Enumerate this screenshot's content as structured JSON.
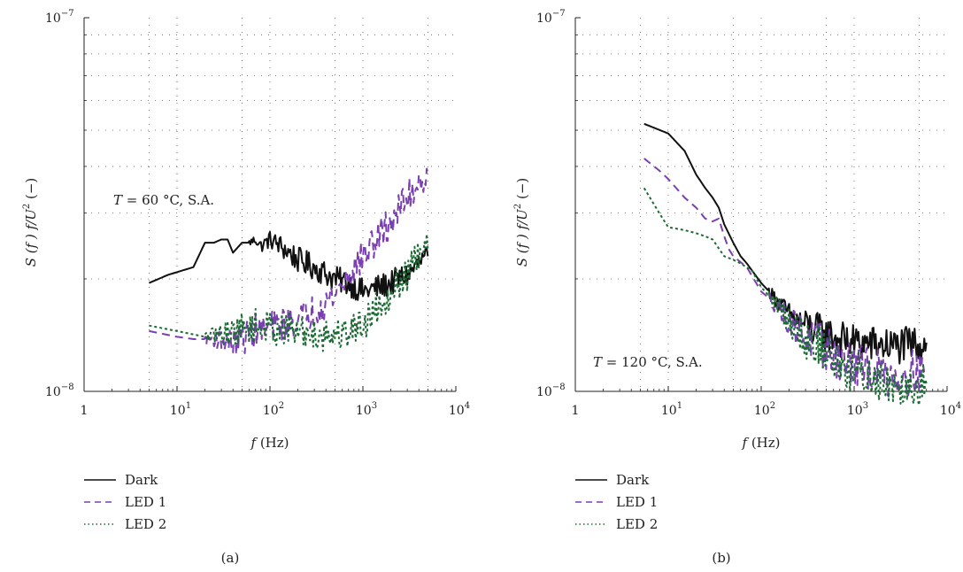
{
  "chart_data": [
    {
      "type": "line",
      "panel_label": "(a)",
      "annotation": {
        "symbol": "T",
        "text": " = 60 °C, S.A."
      },
      "xlabel": {
        "symbol": "f",
        "unit": " (Hz)"
      },
      "ylabel": {
        "main": "S (f ) f/U",
        "power": "2",
        "tail": " (−)"
      },
      "x_scale": "log",
      "y_scale": "log",
      "xlim": [
        1,
        10000
      ],
      "ylim": [
        1e-08,
        1e-07
      ],
      "x_ticks": [
        {
          "base": "1",
          "exp": ""
        },
        {
          "base": "10",
          "exp": "1"
        },
        {
          "base": "10",
          "exp": "2"
        },
        {
          "base": "10",
          "exp": "3"
        },
        {
          "base": "10",
          "exp": "4"
        }
      ],
      "y_ticks": [
        {
          "base": "10",
          "exp": "−8"
        },
        {
          "base": "10",
          "exp": "−7"
        }
      ],
      "grid": true,
      "series": [
        {
          "name": "Dark",
          "color": "#111111",
          "dash": "solid",
          "noise_from": 60,
          "noise_amp": 0.035,
          "points": [
            [
              5,
              1.95e-08
            ],
            [
              8,
              2.05e-08
            ],
            [
              15,
              2.15e-08
            ],
            [
              20,
              2.5e-08
            ],
            [
              25,
              2.5e-08
            ],
            [
              30,
              2.55e-08
            ],
            [
              35,
              2.55e-08
            ],
            [
              40,
              2.35e-08
            ],
            [
              50,
              2.5e-08
            ],
            [
              60,
              2.5e-08
            ],
            [
              70,
              2.55e-08
            ],
            [
              80,
              2.45e-08
            ],
            [
              90,
              2.5e-08
            ],
            [
              100,
              2.55e-08
            ],
            [
              130,
              2.45e-08
            ],
            [
              200,
              2.25e-08
            ],
            [
              300,
              2.15e-08
            ],
            [
              500,
              2e-08
            ],
            [
              700,
              1.95e-08
            ],
            [
              1000,
              1.85e-08
            ],
            [
              1500,
              1.9e-08
            ],
            [
              2000,
              1.95e-08
            ],
            [
              3000,
              2.05e-08
            ],
            [
              4000,
              2.2e-08
            ],
            [
              5000,
              2.3e-08
            ]
          ]
        },
        {
          "name": "LED 1",
          "color": "#7a3fb0",
          "dash": "9 6",
          "noise_from": 20,
          "noise_amp": 0.045,
          "points": [
            [
              5,
              1.45e-08
            ],
            [
              10,
              1.4e-08
            ],
            [
              15,
              1.38e-08
            ],
            [
              25,
              1.38e-08
            ],
            [
              40,
              1.35e-08
            ],
            [
              70,
              1.45e-08
            ],
            [
              100,
              1.48e-08
            ],
            [
              200,
              1.55e-08
            ],
            [
              300,
              1.65e-08
            ],
            [
              500,
              1.82e-08
            ],
            [
              700,
              2.05e-08
            ],
            [
              1000,
              2.3e-08
            ],
            [
              1500,
              2.6e-08
            ],
            [
              2000,
              2.85e-08
            ],
            [
              3000,
              3.3e-08
            ],
            [
              4000,
              3.65e-08
            ],
            [
              5000,
              3.85e-08
            ]
          ]
        },
        {
          "name": "LED 2",
          "color": "#1e6b35",
          "dash": "3 3",
          "noise_from": 20,
          "noise_amp": 0.045,
          "points": [
            [
              5,
              1.5e-08
            ],
            [
              10,
              1.45e-08
            ],
            [
              20,
              1.4e-08
            ],
            [
              40,
              1.45e-08
            ],
            [
              70,
              1.5e-08
            ],
            [
              100,
              1.48e-08
            ],
            [
              200,
              1.45e-08
            ],
            [
              300,
              1.42e-08
            ],
            [
              500,
              1.42e-08
            ],
            [
              700,
              1.45e-08
            ],
            [
              1000,
              1.52e-08
            ],
            [
              1500,
              1.7e-08
            ],
            [
              2000,
              1.85e-08
            ],
            [
              3000,
              2.05e-08
            ],
            [
              4000,
              2.3e-08
            ],
            [
              5000,
              2.4e-08
            ]
          ]
        }
      ]
    },
    {
      "type": "line",
      "panel_label": "(b)",
      "annotation": {
        "symbol": "T",
        "text": " = 120 °C, S.A."
      },
      "xlabel": {
        "symbol": "f",
        "unit": " (Hz)"
      },
      "ylabel": {
        "main": "S (f ) f/U",
        "power": "2",
        "tail": " (−)"
      },
      "x_scale": "log",
      "y_scale": "log",
      "xlim": [
        1,
        10000
      ],
      "ylim": [
        1e-08,
        1e-07
      ],
      "x_ticks": [
        {
          "base": "1",
          "exp": ""
        },
        {
          "base": "10",
          "exp": "1"
        },
        {
          "base": "10",
          "exp": "2"
        },
        {
          "base": "10",
          "exp": "3"
        },
        {
          "base": "10",
          "exp": "4"
        }
      ],
      "y_ticks": [
        {
          "base": "10",
          "exp": "−8"
        },
        {
          "base": "10",
          "exp": "−7"
        }
      ],
      "grid": true,
      "series": [
        {
          "name": "Dark",
          "color": "#111111",
          "dash": "solid",
          "noise_from": 120,
          "noise_amp": 0.05,
          "points": [
            [
              5.5,
              5.2e-08
            ],
            [
              10,
              4.9e-08
            ],
            [
              15,
              4.4e-08
            ],
            [
              20,
              3.8e-08
            ],
            [
              25,
              3.5e-08
            ],
            [
              30,
              3.3e-08
            ],
            [
              35,
              3.1e-08
            ],
            [
              40,
              2.8e-08
            ],
            [
              50,
              2.5e-08
            ],
            [
              60,
              2.3e-08
            ],
            [
              70,
              2.2e-08
            ],
            [
              100,
              1.95e-08
            ],
            [
              150,
              1.75e-08
            ],
            [
              200,
              1.6e-08
            ],
            [
              300,
              1.5e-08
            ],
            [
              500,
              1.42e-08
            ],
            [
              700,
              1.38e-08
            ],
            [
              1000,
              1.35e-08
            ],
            [
              2000,
              1.33e-08
            ],
            [
              3000,
              1.32e-08
            ],
            [
              6000,
              1.35e-08
            ]
          ]
        },
        {
          "name": "LED 1",
          "color": "#7a3fb0",
          "dash": "9 6",
          "noise_from": 120,
          "noise_amp": 0.06,
          "points": [
            [
              5.5,
              4.2e-08
            ],
            [
              8,
              3.9e-08
            ],
            [
              10,
              3.7e-08
            ],
            [
              15,
              3.3e-08
            ],
            [
              20,
              3.1e-08
            ],
            [
              25,
              2.9e-08
            ],
            [
              30,
              2.85e-08
            ],
            [
              35,
              2.9e-08
            ],
            [
              40,
              2.6e-08
            ],
            [
              45,
              2.4e-08
            ],
            [
              50,
              2.3e-08
            ],
            [
              70,
              2.15e-08
            ],
            [
              100,
              1.85e-08
            ],
            [
              150,
              1.7e-08
            ],
            [
              200,
              1.55e-08
            ],
            [
              300,
              1.4e-08
            ],
            [
              500,
              1.3e-08
            ],
            [
              700,
              1.22e-08
            ],
            [
              1000,
              1.18e-08
            ],
            [
              2000,
              1.12e-08
            ],
            [
              3000,
              1.1e-08
            ],
            [
              6000,
              1.15e-08
            ]
          ]
        },
        {
          "name": "LED 2",
          "color": "#1e6b35",
          "dash": "3 3",
          "noise_from": 120,
          "noise_amp": 0.06,
          "points": [
            [
              5.5,
              3.5e-08
            ],
            [
              8,
              3e-08
            ],
            [
              10,
              2.75e-08
            ],
            [
              15,
              2.7e-08
            ],
            [
              20,
              2.65e-08
            ],
            [
              25,
              2.6e-08
            ],
            [
              30,
              2.55e-08
            ],
            [
              40,
              2.3e-08
            ],
            [
              50,
              2.25e-08
            ],
            [
              60,
              2.2e-08
            ],
            [
              80,
              2.1e-08
            ],
            [
              100,
              1.9e-08
            ],
            [
              150,
              1.7e-08
            ],
            [
              200,
              1.55e-08
            ],
            [
              300,
              1.4e-08
            ],
            [
              500,
              1.28e-08
            ],
            [
              700,
              1.18e-08
            ],
            [
              1000,
              1.12e-08
            ],
            [
              2000,
              1.08e-08
            ],
            [
              3000,
              1.05e-08
            ],
            [
              6000,
              1.05e-08
            ]
          ]
        }
      ]
    }
  ]
}
